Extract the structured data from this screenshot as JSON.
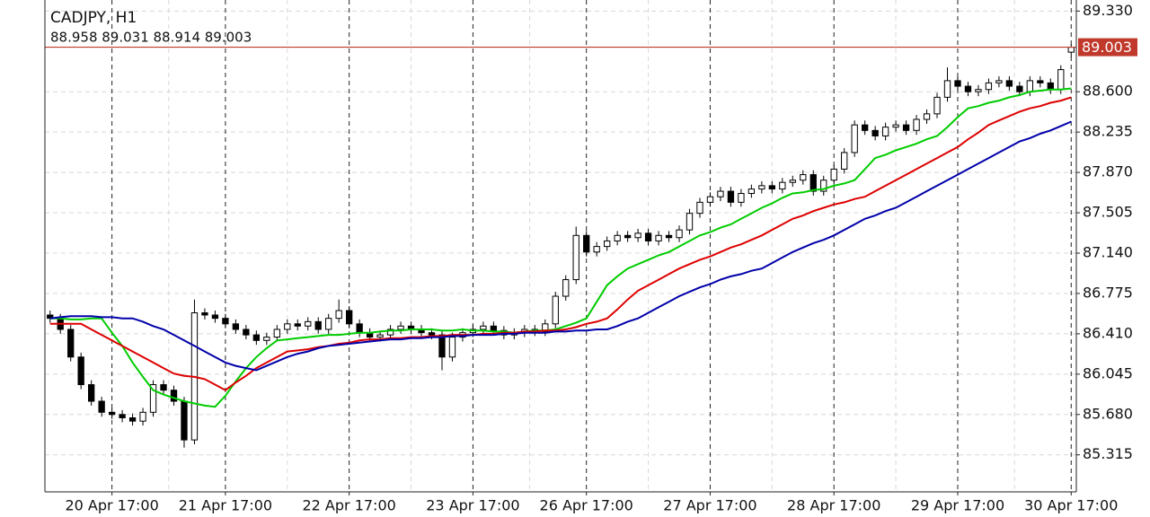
{
  "chart_data": {
    "type": "candlestick",
    "title": "CADJPY, H1",
    "subtitle": "88.958 89.031 88.914 89.003",
    "categories": [
      null,
      null,
      null,
      null,
      null,
      null,
      "20 Apr 17:00",
      null,
      null,
      null,
      null,
      null,
      null,
      null,
      null,
      null,
      null,
      "21 Apr 17:00",
      null,
      null,
      null,
      null,
      null,
      null,
      null,
      null,
      null,
      null,
      null,
      "22 Apr 17:00",
      null,
      null,
      null,
      null,
      null,
      null,
      null,
      null,
      null,
      null,
      null,
      "23 Apr 17:00",
      null,
      null,
      null,
      null,
      null,
      null,
      null,
      null,
      null,
      null,
      "26 Apr 17:00",
      null,
      null,
      null,
      null,
      null,
      null,
      null,
      null,
      null,
      null,
      null,
      "27 Apr 17:00",
      null,
      null,
      null,
      null,
      null,
      null,
      null,
      null,
      null,
      null,
      null,
      "28 Apr 17:00",
      null,
      null,
      null,
      null,
      null,
      null,
      null,
      null,
      null,
      null,
      null,
      "29 Apr 17:00",
      null,
      null,
      null,
      null,
      null,
      null,
      null,
      null,
      null,
      null,
      "30 Apr 17:00"
    ],
    "open": [
      86.58,
      86.55,
      86.45,
      86.2,
      85.95,
      85.8,
      85.7,
      85.68,
      85.65,
      85.62,
      85.7,
      85.95,
      85.9,
      85.8,
      85.45,
      86.6,
      86.58,
      86.55,
      86.5,
      86.45,
      86.4,
      86.35,
      86.38,
      86.45,
      86.5,
      86.48,
      86.52,
      86.45,
      86.55,
      86.62,
      86.5,
      86.42,
      86.38,
      86.4,
      86.45,
      86.48,
      86.45,
      86.42,
      86.4,
      86.2,
      86.38,
      86.42,
      86.45,
      86.48,
      86.44,
      86.4,
      86.42,
      86.45,
      86.43,
      86.5,
      86.75,
      86.9,
      87.3,
      87.15,
      87.2,
      87.25,
      87.3,
      87.28,
      87.32,
      87.25,
      87.3,
      87.28,
      87.35,
      87.5,
      87.6,
      87.65,
      87.7,
      87.6,
      87.68,
      87.72,
      87.75,
      87.72,
      87.78,
      87.8,
      87.85,
      87.7,
      87.8,
      87.9,
      88.05,
      88.3,
      88.25,
      88.2,
      88.28,
      88.3,
      88.25,
      88.35,
      88.4,
      88.55,
      88.7,
      88.65,
      88.6,
      88.62,
      88.68,
      88.7,
      88.65,
      88.6,
      88.7,
      88.68,
      88.62,
      88.958
    ],
    "high": [
      86.62,
      86.59,
      86.49,
      86.24,
      85.99,
      85.84,
      85.74,
      85.72,
      85.69,
      85.74,
      85.99,
      85.99,
      85.94,
      85.84,
      86.72,
      86.64,
      86.62,
      86.59,
      86.54,
      86.49,
      86.44,
      86.42,
      86.49,
      86.54,
      86.54,
      86.56,
      86.56,
      86.59,
      86.72,
      86.66,
      86.54,
      86.46,
      86.44,
      86.49,
      86.52,
      86.52,
      86.49,
      86.46,
      86.44,
      86.42,
      86.46,
      86.49,
      86.52,
      86.52,
      86.48,
      86.46,
      86.49,
      86.49,
      86.54,
      86.79,
      86.94,
      87.38,
      87.34,
      87.24,
      87.29,
      87.34,
      87.34,
      87.36,
      87.36,
      87.34,
      87.34,
      87.39,
      87.54,
      87.64,
      87.69,
      87.74,
      87.74,
      87.72,
      87.76,
      87.79,
      87.79,
      87.82,
      87.84,
      87.89,
      87.89,
      87.84,
      87.94,
      88.09,
      88.34,
      88.34,
      88.29,
      88.32,
      88.34,
      88.34,
      88.39,
      88.44,
      88.59,
      88.82,
      88.74,
      88.69,
      88.66,
      88.72,
      88.74,
      88.74,
      88.69,
      88.74,
      88.74,
      88.72,
      88.84,
      89.031
    ],
    "low": [
      86.51,
      86.41,
      86.16,
      85.91,
      85.76,
      85.66,
      85.64,
      85.61,
      85.58,
      85.58,
      85.66,
      85.86,
      85.76,
      85.38,
      85.41,
      86.54,
      86.51,
      86.46,
      86.41,
      86.36,
      86.31,
      86.31,
      86.34,
      86.41,
      86.44,
      86.44,
      86.41,
      86.41,
      86.51,
      86.46,
      86.38,
      86.34,
      86.34,
      86.36,
      86.41,
      86.41,
      86.38,
      86.36,
      86.08,
      86.16,
      86.34,
      86.38,
      86.41,
      86.4,
      86.36,
      86.36,
      86.38,
      86.39,
      86.39,
      86.46,
      86.71,
      86.86,
      87.11,
      87.11,
      87.16,
      87.21,
      87.24,
      87.24,
      87.21,
      87.21,
      87.24,
      87.24,
      87.31,
      87.46,
      87.56,
      87.61,
      87.56,
      87.56,
      87.64,
      87.68,
      87.68,
      87.68,
      87.74,
      87.76,
      87.66,
      87.66,
      87.76,
      87.86,
      88.01,
      88.21,
      88.16,
      88.16,
      88.24,
      88.21,
      88.21,
      88.31,
      88.36,
      88.51,
      88.61,
      88.56,
      88.56,
      88.58,
      88.64,
      88.61,
      88.56,
      88.56,
      88.64,
      88.58,
      88.58,
      88.914
    ],
    "close": [
      86.55,
      86.45,
      86.2,
      85.95,
      85.8,
      85.7,
      85.68,
      85.65,
      85.62,
      85.7,
      85.95,
      85.9,
      85.8,
      85.45,
      86.6,
      86.58,
      86.55,
      86.5,
      86.45,
      86.4,
      86.35,
      86.38,
      86.45,
      86.5,
      86.48,
      86.52,
      86.45,
      86.55,
      86.62,
      86.5,
      86.42,
      86.38,
      86.4,
      86.45,
      86.48,
      86.45,
      86.42,
      86.4,
      86.2,
      86.38,
      86.42,
      86.45,
      86.48,
      86.44,
      86.4,
      86.42,
      86.45,
      86.43,
      86.5,
      86.75,
      86.9,
      87.3,
      87.15,
      87.2,
      87.25,
      87.3,
      87.28,
      87.32,
      87.25,
      87.3,
      87.28,
      87.35,
      87.5,
      87.6,
      87.65,
      87.7,
      87.6,
      87.68,
      87.72,
      87.75,
      87.72,
      87.78,
      87.8,
      87.85,
      87.7,
      87.8,
      87.9,
      88.05,
      88.3,
      88.25,
      88.2,
      88.28,
      88.3,
      88.25,
      88.35,
      88.4,
      88.55,
      88.7,
      88.65,
      88.6,
      88.62,
      88.68,
      88.7,
      88.65,
      88.6,
      88.7,
      88.68,
      88.62,
      88.8,
      89.003
    ],
    "series": [
      {
        "color": "#00cc00",
        "values": [
          86.55,
          86.55,
          86.54,
          86.54,
          86.55,
          86.55,
          86.42,
          86.3,
          86.15,
          86.02,
          85.9,
          85.86,
          85.83,
          85.8,
          85.78,
          85.76,
          85.75,
          85.85,
          85.98,
          86.1,
          86.2,
          86.28,
          86.35,
          86.36,
          86.37,
          86.38,
          86.39,
          86.4,
          86.4,
          86.41,
          86.42,
          86.42,
          86.43,
          86.44,
          86.44,
          86.45,
          86.45,
          86.45,
          86.44,
          86.44,
          86.45,
          86.44,
          86.44,
          86.43,
          86.43,
          86.42,
          86.43,
          86.44,
          86.44,
          86.45,
          86.48,
          86.51,
          86.55,
          86.7,
          86.85,
          86.93,
          87.0,
          87.04,
          87.08,
          87.12,
          87.15,
          87.2,
          87.25,
          87.3,
          87.33,
          87.37,
          87.4,
          87.45,
          87.5,
          87.55,
          87.59,
          87.64,
          87.68,
          87.69,
          87.71,
          87.72,
          87.75,
          87.77,
          87.8,
          87.9,
          88.0,
          88.03,
          88.07,
          88.1,
          88.13,
          88.17,
          88.2,
          88.28,
          88.37,
          88.45,
          88.47,
          88.5,
          88.52,
          88.55,
          88.57,
          88.6,
          88.61,
          88.62,
          88.62,
          88.63
        ]
      },
      {
        "color": "#dd0000",
        "values": [
          86.5,
          86.5,
          86.5,
          86.5,
          86.45,
          86.4,
          86.35,
          86.3,
          86.25,
          86.2,
          86.15,
          86.1,
          86.05,
          86.03,
          86.02,
          86.0,
          85.95,
          85.9,
          85.97,
          86.03,
          86.1,
          86.15,
          86.2,
          86.25,
          86.26,
          86.27,
          86.29,
          86.3,
          86.32,
          86.33,
          86.35,
          86.36,
          86.36,
          86.37,
          86.37,
          86.38,
          86.38,
          86.39,
          86.39,
          86.4,
          86.4,
          86.4,
          86.41,
          86.41,
          86.42,
          86.42,
          86.43,
          86.43,
          86.44,
          86.44,
          86.45,
          86.47,
          86.5,
          86.52,
          86.55,
          86.63,
          86.72,
          86.8,
          86.85,
          86.9,
          86.95,
          87.0,
          87.04,
          87.08,
          87.11,
          87.15,
          87.19,
          87.22,
          87.26,
          87.3,
          87.35,
          87.4,
          87.45,
          87.48,
          87.52,
          87.55,
          87.58,
          87.6,
          87.63,
          87.65,
          87.7,
          87.75,
          87.8,
          87.85,
          87.9,
          87.95,
          88.0,
          88.05,
          88.1,
          88.17,
          88.23,
          88.3,
          88.34,
          88.38,
          88.42,
          88.45,
          88.47,
          88.5,
          88.52,
          88.55
        ]
      },
      {
        "color": "#0000aa",
        "values": [
          86.55,
          86.56,
          86.57,
          86.57,
          86.57,
          86.56,
          86.56,
          86.55,
          86.55,
          86.52,
          86.48,
          86.45,
          86.4,
          86.35,
          86.3,
          86.25,
          86.2,
          86.15,
          86.12,
          86.1,
          86.08,
          86.12,
          86.16,
          86.2,
          86.23,
          86.25,
          86.28,
          86.3,
          86.31,
          86.32,
          86.33,
          86.34,
          86.35,
          86.36,
          86.36,
          86.37,
          86.37,
          86.38,
          86.38,
          86.39,
          86.39,
          86.4,
          86.4,
          86.4,
          86.41,
          86.41,
          86.42,
          86.42,
          86.42,
          86.43,
          86.43,
          86.44,
          86.44,
          86.45,
          86.45,
          86.48,
          86.52,
          86.55,
          86.6,
          86.65,
          86.7,
          86.75,
          86.79,
          86.83,
          86.86,
          86.9,
          86.93,
          86.95,
          86.98,
          87.0,
          87.05,
          87.1,
          87.15,
          87.19,
          87.23,
          87.26,
          87.3,
          87.35,
          87.4,
          87.45,
          87.48,
          87.52,
          87.55,
          87.6,
          87.65,
          87.7,
          87.75,
          87.8,
          87.85,
          87.9,
          87.95,
          88.0,
          88.05,
          88.1,
          88.15,
          88.18,
          88.22,
          88.25,
          88.29,
          88.33
        ]
      }
    ],
    "last_price": 89.003,
    "last_price_color": "#c0392b",
    "ylim": [
      84.98,
      89.43
    ],
    "yticks": [
      {
        "value": 89.33,
        "label": "89.330"
      },
      {
        "value": 88.6,
        "label": "88.600"
      },
      88.235,
      {
        "value": 87.87,
        "label": "87.870"
      },
      87.505,
      {
        "value": 87.14,
        "label": "87.140"
      },
      86.775,
      {
        "value": 86.41,
        "label": "86.410"
      },
      86.045,
      {
        "value": 85.68,
        "label": "85.680"
      },
      85.315
    ],
    "grid": true
  }
}
